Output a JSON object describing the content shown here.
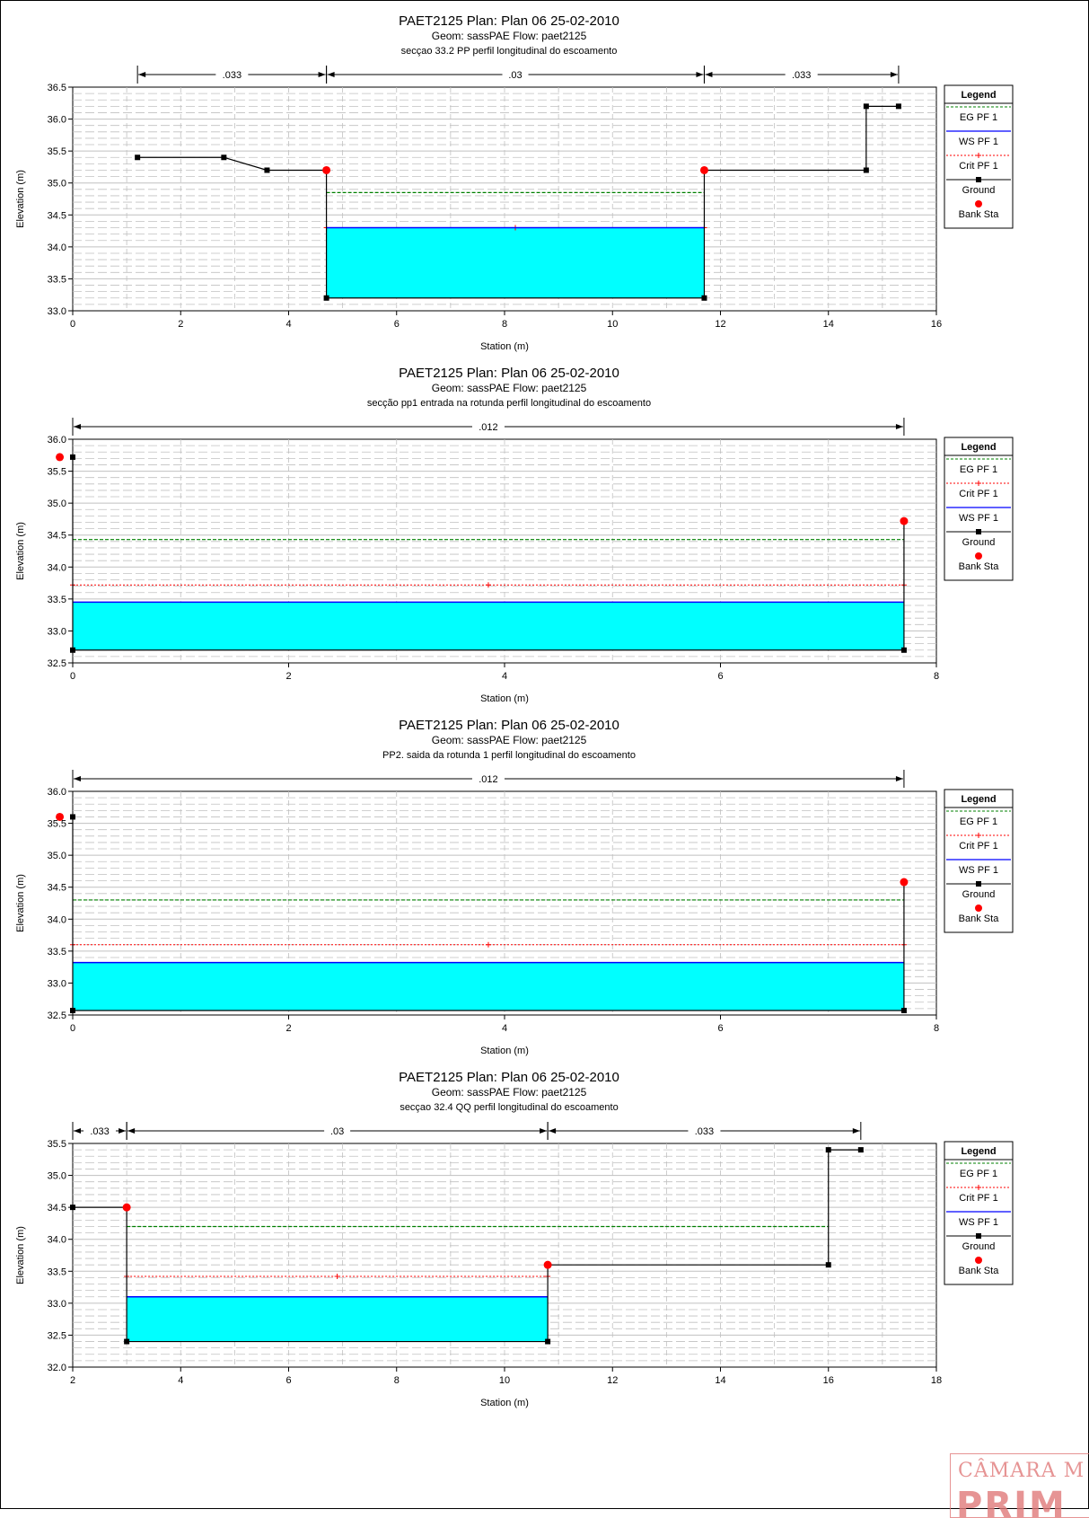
{
  "colors": {
    "eg": "#008000",
    "crit": "#ff0000",
    "ws": "#0000ff",
    "ground": "#000000",
    "bank": "#ff0000",
    "water": "#00ffff",
    "grid": "#c0c0c0"
  },
  "legend_title": "Legend",
  "stamp_text": [
    "CÂMARA M",
    "PRIM"
  ],
  "chart_data": [
    {
      "type": "line",
      "title": "PAET2125        Plan: Plan 06    25-02-2010",
      "subtitle": "Geom: sassPAE    Flow: paet2125",
      "subtitle2": "secçao 33.2 PP  perfil longitudinal do escoamento",
      "xlabel": "Station (m)",
      "ylabel": "Elevation (m)",
      "xlim": [
        0,
        16
      ],
      "ylim": [
        33.0,
        36.5
      ],
      "xticks": [
        0,
        2,
        4,
        6,
        8,
        10,
        12,
        14,
        16
      ],
      "yticks": [
        33.0,
        33.5,
        34.0,
        34.5,
        35.0,
        35.5,
        36.0,
        36.5
      ],
      "grid": true,
      "legend_position": "right",
      "legend": [
        "EG PF 1",
        "WS PF 1",
        "Crit PF 1",
        "Ground",
        "Bank Sta"
      ],
      "ground": [
        [
          1.2,
          35.4
        ],
        [
          2.8,
          35.4
        ],
        [
          3.6,
          35.2
        ],
        [
          4.7,
          35.2
        ],
        [
          4.7,
          33.2
        ],
        [
          11.7,
          33.2
        ],
        [
          11.7,
          35.2
        ],
        [
          14.7,
          35.2
        ],
        [
          14.7,
          36.2
        ],
        [
          15.3,
          36.2
        ]
      ],
      "bank_stations": [
        [
          4.7,
          35.2
        ],
        [
          11.7,
          35.2
        ]
      ],
      "eg": {
        "x": [
          4.7,
          11.7
        ],
        "y": 34.85
      },
      "ws": {
        "x": [
          4.7,
          11.7
        ],
        "y": 34.3
      },
      "crit": {
        "x": [
          4.7,
          11.7
        ],
        "y": 34.3
      },
      "manning": [
        {
          "from": 1.2,
          "to": 4.7,
          "label": ".033"
        },
        {
          "from": 4.7,
          "to": 11.7,
          "label": ".03"
        },
        {
          "from": 11.7,
          "to": 15.3,
          "label": ".033"
        }
      ]
    },
    {
      "type": "line",
      "title": "PAET2125        Plan: Plan 06    25-02-2010",
      "subtitle": "Geom: sassPAE    Flow: paet2125",
      "subtitle2": "secção pp1 entrada na rotunda  perfil longitudinal do escoamento",
      "xlabel": "Station (m)",
      "ylabel": "Elevation (m)",
      "xlim": [
        0,
        8
      ],
      "ylim": [
        32.5,
        36.0
      ],
      "xticks": [
        0,
        2,
        4,
        6,
        8
      ],
      "yticks": [
        32.5,
        33.0,
        33.5,
        34.0,
        34.5,
        35.0,
        35.5,
        36.0
      ],
      "grid": true,
      "legend_position": "right",
      "legend": [
        "EG PF 1",
        "Crit PF 1",
        "WS PF 1",
        "Ground",
        "Bank Sta"
      ],
      "ground": [
        [
          0,
          35.72
        ],
        [
          0,
          32.7
        ],
        [
          7.7,
          32.7
        ],
        [
          7.7,
          34.72
        ]
      ],
      "bank_stations": [
        [
          -0.12,
          35.72
        ],
        [
          7.7,
          34.72
        ]
      ],
      "eg": {
        "x": [
          0,
          7.7
        ],
        "y": 34.43
      },
      "ws": {
        "x": [
          0,
          7.7
        ],
        "y": 33.45
      },
      "crit": {
        "x": [
          0,
          7.7
        ],
        "y": 33.72
      },
      "manning": [
        {
          "from": 0,
          "to": 7.7,
          "label": ".012"
        }
      ]
    },
    {
      "type": "line",
      "title": "PAET2125        Plan: Plan 06    25-02-2010",
      "subtitle": "Geom: sassPAE    Flow: paet2125",
      "subtitle2": "PP2. saida da rotunda 1  perfil longitudinal do escoamento",
      "xlabel": "Station (m)",
      "ylabel": "Elevation (m)",
      "xlim": [
        0,
        8
      ],
      "ylim": [
        32.5,
        36.0
      ],
      "xticks": [
        0,
        2,
        4,
        6,
        8
      ],
      "yticks": [
        32.5,
        33.0,
        33.5,
        34.0,
        34.5,
        35.0,
        35.5,
        36.0
      ],
      "grid": true,
      "legend_position": "right",
      "legend": [
        "EG PF 1",
        "Crit PF 1",
        "WS PF 1",
        "Ground",
        "Bank Sta"
      ],
      "ground": [
        [
          0,
          35.6
        ],
        [
          0,
          32.57
        ],
        [
          7.7,
          32.57
        ],
        [
          7.7,
          34.58
        ]
      ],
      "bank_stations": [
        [
          -0.12,
          35.6
        ],
        [
          7.7,
          34.58
        ]
      ],
      "eg": {
        "x": [
          0,
          7.7
        ],
        "y": 34.3
      },
      "ws": {
        "x": [
          0,
          7.7
        ],
        "y": 33.32
      },
      "crit": {
        "x": [
          0,
          7.7
        ],
        "y": 33.6
      },
      "manning": [
        {
          "from": 0,
          "to": 7.7,
          "label": ".012"
        }
      ]
    },
    {
      "type": "line",
      "title": "PAET2125        Plan: Plan 06    25-02-2010",
      "subtitle": "Geom: sassPAE    Flow: paet2125",
      "subtitle2": "secçao 32.4 QQ  perfil longitudinal do escoamento",
      "xlabel": "Station (m)",
      "ylabel": "Elevation (m)",
      "xlim": [
        2,
        18
      ],
      "ylim": [
        32.0,
        35.5
      ],
      "xticks": [
        2,
        4,
        6,
        8,
        10,
        12,
        14,
        16,
        18
      ],
      "yticks": [
        32.0,
        32.5,
        33.0,
        33.5,
        34.0,
        34.5,
        35.0,
        35.5
      ],
      "grid": true,
      "legend_position": "right",
      "legend": [
        "EG PF 1",
        "Crit PF 1",
        "WS PF 1",
        "Ground",
        "Bank Sta"
      ],
      "ground": [
        [
          2.0,
          34.5
        ],
        [
          3.0,
          34.5
        ],
        [
          3.0,
          32.4
        ],
        [
          10.8,
          32.4
        ],
        [
          10.8,
          33.6
        ],
        [
          16.0,
          33.6
        ],
        [
          16.0,
          35.4
        ],
        [
          16.6,
          35.4
        ]
      ],
      "bank_stations": [
        [
          3.0,
          34.5
        ],
        [
          10.8,
          33.6
        ]
      ],
      "eg": {
        "x": [
          3.0,
          16.0
        ],
        "y": 34.2
      },
      "ws": {
        "x": [
          3.0,
          10.8
        ],
        "y": 33.1
      },
      "crit": {
        "x": [
          3.0,
          10.8
        ],
        "y": 33.42
      },
      "manning": [
        {
          "from": 2.0,
          "to": 3.0,
          "label": ".033"
        },
        {
          "from": 3.0,
          "to": 10.8,
          "label": ".03"
        },
        {
          "from": 10.8,
          "to": 16.6,
          "label": ".033"
        }
      ]
    }
  ]
}
